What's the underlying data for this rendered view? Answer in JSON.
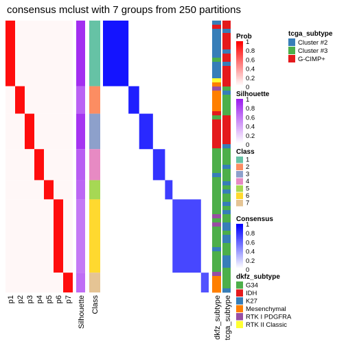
{
  "title": "consensus mclust with 7 groups from 250 partitions",
  "chart_data": {
    "type": "heatmap",
    "title": "consensus mclust with 7 groups from 250 partitions",
    "k": 7,
    "partitions": 250,
    "columns": {
      "prob": [
        "p1",
        "p2",
        "p3",
        "p4",
        "p5",
        "p6",
        "p7"
      ],
      "silhouette": "Silhouette",
      "class": "Class",
      "dkfz": "dkfz_subtype",
      "tcga": "tcga_subtype"
    },
    "group_fractions": [
      0.222,
      0.093,
      0.12,
      0.105,
      0.065,
      0.248,
      0.067
    ],
    "group_silhouette": [
      0.93,
      0.7,
      0.9,
      0.72,
      0.68,
      0.6,
      0.65
    ],
    "legends": {
      "prob": {
        "title": "Prob",
        "ticks": [
          "1",
          "0.8",
          "0.6",
          "0.4",
          "0.2",
          "0"
        ],
        "low": "#ffffff",
        "high": "#ff0000"
      },
      "silhouette": {
        "title": "Silhouette",
        "ticks": [
          "1",
          "0.8",
          "0.6",
          "0.4",
          "0.2",
          "0"
        ],
        "low": "#ffffff",
        "high": "#9c1fef"
      },
      "class": {
        "title": "Class",
        "labels": [
          "1",
          "2",
          "3",
          "4",
          "5",
          "6",
          "7"
        ],
        "colors": [
          "#66c2a5",
          "#fc8d62",
          "#8da0cb",
          "#e78ac3",
          "#a6d854",
          "#ffd92f",
          "#e5c494"
        ]
      },
      "consensus": {
        "title": "Consensus",
        "ticks": [
          "1",
          "0.8",
          "0.6",
          "0.4",
          "0.2",
          "0"
        ],
        "low": "#ffffff",
        "high": "#0000ff"
      },
      "tcga_subtype": {
        "title": "tcga_subtype",
        "labels": [
          "Cluster #2",
          "Cluster #3",
          "G-CIMP+"
        ],
        "colors": [
          "#377eb8",
          "#4daf4a",
          "#e41a1c"
        ]
      },
      "dkfz_subtype": {
        "title": "dkfz_subtype",
        "labels": [
          "G34",
          "IDH",
          "K27",
          "Mesenchymal",
          "RTK I PDGFRA",
          "RTK II Classic"
        ],
        "colors": [
          "#4daf4a",
          "#e41a1c",
          "#377eb8",
          "#ff7f00",
          "#984ea3",
          "#ffff33"
        ]
      }
    }
  }
}
